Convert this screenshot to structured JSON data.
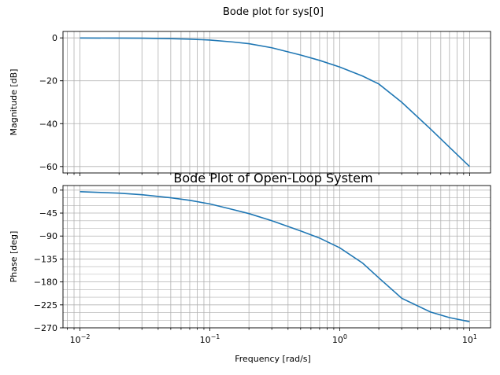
{
  "figure": {
    "suptitle": "Bode plot for sys[0]",
    "line_color": "#1f77b4",
    "grid_color": "#b0b0b0"
  },
  "chart_data": [
    {
      "type": "line",
      "panel": "magnitude",
      "title": "",
      "xlabel": "",
      "ylabel": "Magnitude [dB]",
      "xscale": "log",
      "xlim": [
        0.0074,
        14.5
      ],
      "ylim": [
        -63,
        3
      ],
      "yticks": [
        0,
        -20,
        -40,
        -60
      ],
      "ytick_labels": [
        "0",
        "−20",
        "−40",
        "−60"
      ],
      "grid": true,
      "series": [
        {
          "x": [
            0.01,
            0.02,
            0.03,
            0.05,
            0.07,
            0.1,
            0.15,
            0.2,
            0.3,
            0.5,
            0.7,
            1.0,
            1.5,
            2.0,
            3.0,
            5.0,
            7.0,
            10.0
          ],
          "y": [
            -0.05,
            -0.1,
            -0.15,
            -0.35,
            -0.6,
            -1.0,
            -1.9,
            -2.7,
            -4.6,
            -8.0,
            -10.5,
            -13.6,
            -17.8,
            -21.5,
            -30.0,
            -42.5,
            -51.0,
            -60.0
          ]
        }
      ]
    },
    {
      "type": "line",
      "panel": "phase",
      "title": "Bode Plot of Open-Loop System",
      "xlabel": "Frequency [rad/s]",
      "ylabel": "Phase [deg]",
      "xscale": "log",
      "xlim": [
        0.0074,
        14.5
      ],
      "ylim": [
        -270,
        9
      ],
      "xticks": [
        0.01,
        0.1,
        1,
        10
      ],
      "xtick_labels": [
        {
          "base": "10",
          "exp": "−2"
        },
        {
          "base": "10",
          "exp": "−1"
        },
        {
          "base": "10",
          "exp": "0"
        },
        {
          "base": "10",
          "exp": "1"
        }
      ],
      "yticks": [
        0,
        -45,
        -90,
        -135,
        -180,
        -225,
        -270
      ],
      "ytick_labels": [
        "0",
        "−45",
        "−90",
        "−135",
        "−180",
        "−225",
        "−270"
      ],
      "grid": true,
      "series": [
        {
          "x": [
            0.01,
            0.02,
            0.03,
            0.05,
            0.07,
            0.1,
            0.15,
            0.2,
            0.3,
            0.5,
            0.7,
            1.0,
            1.5,
            2.0,
            3.0,
            5.0,
            7.0,
            10.0
          ],
          "y": [
            -3,
            -6,
            -9,
            -15,
            -20,
            -27,
            -38,
            -46,
            -60,
            -80,
            -94,
            -113,
            -143,
            -172,
            -212,
            -239,
            -250,
            -258
          ]
        }
      ]
    }
  ]
}
